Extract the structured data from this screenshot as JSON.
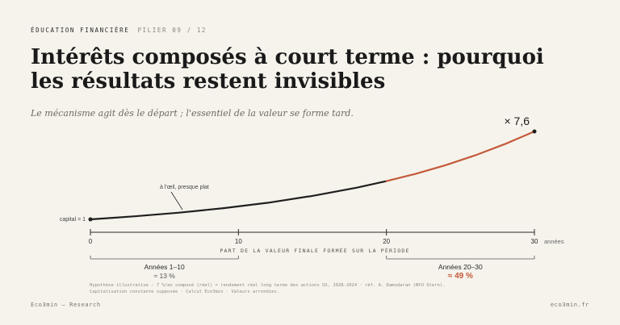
{
  "header": {
    "eyebrow": "ÉDUCATION FINANCIÈRE",
    "eyebrow_meta": "PILIER 09 / 12",
    "title": "Intérêts composés à court terme : pourquoi les résultats restent invisibles",
    "subtitle": "Le mécanisme agit dès le départ ; l'essentiel de la valeur se forme tard."
  },
  "chart_data": {
    "type": "line",
    "x": [
      0,
      3,
      6,
      9,
      12,
      15,
      18,
      20,
      22,
      24,
      26,
      28,
      30
    ],
    "y": [
      1.0,
      1.23,
      1.5,
      1.84,
      2.25,
      2.76,
      3.38,
      3.87,
      4.43,
      5.07,
      5.81,
      6.65,
      7.6
    ],
    "highlight_from_x": 20,
    "xlim": [
      0,
      30
    ],
    "xticks": [
      0,
      10,
      20,
      30
    ],
    "xunit": "années",
    "xlabel": "PART DE LA VALEUR FINALE FORMÉE SUR LA PÉRIODE",
    "annotations": {
      "start": "capital = 1",
      "flat": "à l'œil, presque plat",
      "end": "× 7,6"
    },
    "bands": [
      {
        "label": "Années 1–10",
        "value": "≈ 13 %",
        "from": 0,
        "to": 10,
        "highlight": false
      },
      {
        "label": "Années 20–30",
        "value": "≈ 49 %",
        "from": 20,
        "to": 30,
        "highlight": true
      }
    ],
    "colors": {
      "line": "#1f1f1f",
      "accent": "#c45a3b",
      "axis": "#2a2a2a"
    }
  },
  "footnote": {
    "line1": "Hypothèse illustrative : 7 %/an composé (réel) ≈ rendement réel long terme des actions US, 1928-2024 · réf. A. Damodaran (NYU Stern).",
    "line2": "Capitalisation constante supposée · Calcul Eco3min · Valeurs arrondies."
  },
  "footer": {
    "left": "Eco3min — Research",
    "right": "eco3min.fr"
  }
}
